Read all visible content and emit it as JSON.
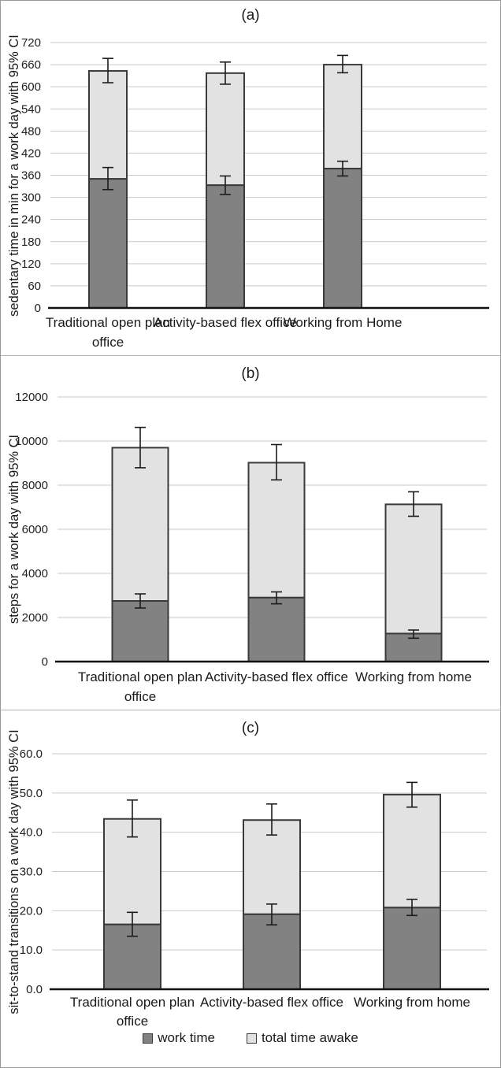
{
  "colors": {
    "work": "#828282",
    "awake": "#e2e2e2",
    "outline": "#3a3a3a",
    "gridline": "#c9c9c9",
    "axis": "#1c1c1c",
    "text": "#1f1f1f"
  },
  "legend": {
    "items": [
      {
        "label": "work time",
        "color": "#828282"
      },
      {
        "label": "total time awake",
        "color": "#e2e2e2"
      }
    ]
  },
  "chart_data": [
    {
      "type": "bar",
      "stacked": true,
      "title": "(a)",
      "ylabel": "sedentary time in min for a work day with 95% CI",
      "ylim": [
        0,
        720
      ],
      "ytick_labels": [
        "0",
        "60",
        "120",
        "180",
        "240",
        "300",
        "360",
        "420",
        "480",
        "540",
        "600",
        "660",
        "720"
      ],
      "grid": true,
      "categories": [
        [
          "Traditional open plan",
          "office"
        ],
        [
          "Activity-based flex office"
        ],
        [
          "Working from Home"
        ]
      ],
      "series": [
        {
          "name": "work time",
          "values": [
            350,
            333,
            378
          ],
          "ci_low": [
            321,
            308,
            358
          ],
          "ci_high": [
            381,
            358,
            398
          ]
        },
        {
          "name": "total time awake",
          "values": [
            643,
            637,
            660
          ],
          "ci_low": [
            611,
            607,
            638
          ],
          "ci_high": [
            677,
            667,
            685
          ]
        }
      ]
    },
    {
      "type": "bar",
      "stacked": true,
      "title": "(b)",
      "ylabel": "steps for a work day with 95% CI",
      "ylim": [
        0,
        12000
      ],
      "ytick_labels": [
        "0",
        "2000",
        "4000",
        "6000",
        "8000",
        "10000",
        "12000"
      ],
      "grid": true,
      "categories": [
        [
          "Traditional open plan",
          "office"
        ],
        [
          "Activity-based flex office"
        ],
        [
          "Working from home"
        ]
      ],
      "series": [
        {
          "name": "work time",
          "values": [
            2750,
            2900,
            1270
          ],
          "ci_low": [
            2430,
            2620,
            1060
          ],
          "ci_high": [
            3070,
            3160,
            1430
          ]
        },
        {
          "name": "total time awake",
          "values": [
            9700,
            9020,
            7130
          ],
          "ci_low": [
            8790,
            8240,
            6590
          ],
          "ci_high": [
            10620,
            9840,
            7700
          ]
        }
      ]
    },
    {
      "type": "bar",
      "stacked": true,
      "title": "(c)",
      "ylabel": "sit-to-stand transitions on a work day with 95% CI",
      "ylim": [
        0,
        60
      ],
      "ytick_labels": [
        "0.0",
        "10.0",
        "20.0",
        "30.0",
        "40.0",
        "50.0",
        "60.0"
      ],
      "grid": true,
      "legend_position": "bottom",
      "categories": [
        [
          "Traditional open plan",
          "office"
        ],
        [
          "Activity-based flex office"
        ],
        [
          "Working from home"
        ]
      ],
      "series": [
        {
          "name": "work time",
          "values": [
            16.5,
            19.1,
            20.8
          ],
          "ci_low": [
            13.5,
            16.4,
            18.8
          ],
          "ci_high": [
            19.6,
            21.7,
            22.9
          ]
        },
        {
          "name": "total time awake",
          "values": [
            43.4,
            43.1,
            49.6
          ],
          "ci_low": [
            38.8,
            39.3,
            46.4
          ],
          "ci_high": [
            48.2,
            47.2,
            52.7
          ]
        }
      ]
    }
  ]
}
